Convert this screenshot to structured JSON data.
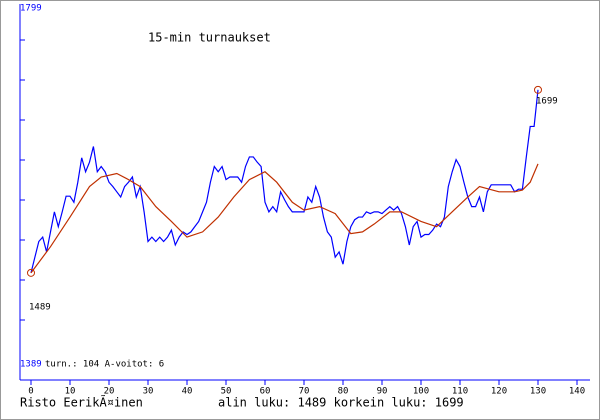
{
  "chart_data": {
    "type": "line",
    "title": "15-min turnaukset",
    "xlim": [
      0,
      140
    ],
    "xticks": [
      0,
      10,
      20,
      30,
      40,
      50,
      60,
      70,
      80,
      90,
      100,
      110,
      120,
      130,
      140
    ],
    "ylim": [
      1389,
      1799
    ],
    "yticks": [
      1389,
      1799
    ],
    "series": [
      {
        "color": "#0000ff",
        "x": [
          0,
          1,
          2,
          3,
          4,
          5,
          6,
          7,
          8,
          9,
          10,
          11,
          12,
          13,
          14,
          15,
          16,
          17,
          18,
          19,
          20,
          21,
          22,
          23,
          24,
          25,
          26,
          27,
          28,
          29,
          30,
          31,
          32,
          33,
          34,
          35,
          36,
          37,
          38,
          39,
          40,
          41,
          42,
          43,
          44,
          45,
          46,
          47,
          48,
          49,
          50,
          51,
          52,
          53,
          54,
          55,
          56,
          57,
          58,
          59,
          60,
          61,
          62,
          63,
          64,
          65,
          66,
          67,
          68,
          69,
          70,
          71,
          72,
          73,
          74,
          75,
          76,
          77,
          78,
          79,
          80,
          81,
          82,
          83,
          84,
          85,
          86,
          87,
          88,
          89,
          90,
          91,
          92,
          93,
          94,
          95,
          96,
          97,
          98,
          99,
          100,
          101,
          102,
          103,
          104,
          105,
          106,
          107,
          108,
          109,
          110,
          111,
          112,
          113,
          114,
          115,
          116,
          117,
          118,
          119,
          120,
          121,
          122,
          123,
          124,
          125,
          126,
          127,
          128,
          129,
          130
        ],
        "values": [
          1489,
          1507,
          1525,
          1530,
          1513,
          1536,
          1559,
          1542,
          1559,
          1577,
          1577,
          1570,
          1593,
          1621,
          1605,
          1616,
          1634,
          1605,
          1611,
          1605,
          1593,
          1588,
          1582,
          1576,
          1588,
          1593,
          1599,
          1576,
          1588,
          1559,
          1525,
          1530,
          1525,
          1530,
          1525,
          1530,
          1538,
          1521,
          1530,
          1536,
          1533,
          1536,
          1542,
          1548,
          1559,
          1570,
          1593,
          1611,
          1605,
          1611,
          1596,
          1599,
          1599,
          1599,
          1593,
          1611,
          1622,
          1622,
          1616,
          1611,
          1570,
          1559,
          1565,
          1559,
          1582,
          1573,
          1565,
          1559,
          1559,
          1559,
          1559,
          1576,
          1570,
          1588,
          1576,
          1553,
          1536,
          1530,
          1507,
          1513,
          1499,
          1525,
          1542,
          1550,
          1553,
          1553,
          1559,
          1557,
          1559,
          1559,
          1557,
          1561,
          1565,
          1561,
          1565,
          1557,
          1542,
          1521,
          1542,
          1548,
          1530,
          1533,
          1533,
          1538,
          1545,
          1542,
          1553,
          1588,
          1605,
          1619,
          1611,
          1593,
          1576,
          1565,
          1565,
          1576,
          1559,
          1582,
          1590,
          1590,
          1590,
          1590,
          1590,
          1590,
          1582,
          1585,
          1585,
          1622,
          1657,
          1657,
          1699
        ]
      },
      {
        "color": "#c03000",
        "x": [
          0,
          5,
          10,
          15,
          18,
          22,
          25,
          28,
          32,
          36,
          40,
          44,
          48,
          52,
          56,
          60,
          63,
          67,
          70,
          74,
          78,
          82,
          85,
          88,
          92,
          95,
          100,
          104,
          108,
          112,
          115,
          120,
          124,
          126,
          128,
          130
        ],
        "values": [
          1489,
          1519,
          1553,
          1588,
          1599,
          1603,
          1596,
          1588,
          1565,
          1548,
          1530,
          1536,
          1553,
          1576,
          1596,
          1605,
          1593,
          1570,
          1561,
          1565,
          1557,
          1534,
          1536,
          1545,
          1559,
          1559,
          1548,
          1542,
          1559,
          1576,
          1588,
          1582,
          1582,
          1584,
          1593,
          1614
        ]
      }
    ],
    "annotations": [
      {
        "text": "1489",
        "x": 0,
        "y": 1489
      },
      {
        "text": "1699",
        "x": 130,
        "y": 1699
      },
      {
        "text": "turn.: 104 A-voitot: 6"
      }
    ],
    "footer": {
      "author": "Risto EerikÃ¤inen",
      "stats": "alin luku: 1489  korkein luku: 1699"
    }
  }
}
